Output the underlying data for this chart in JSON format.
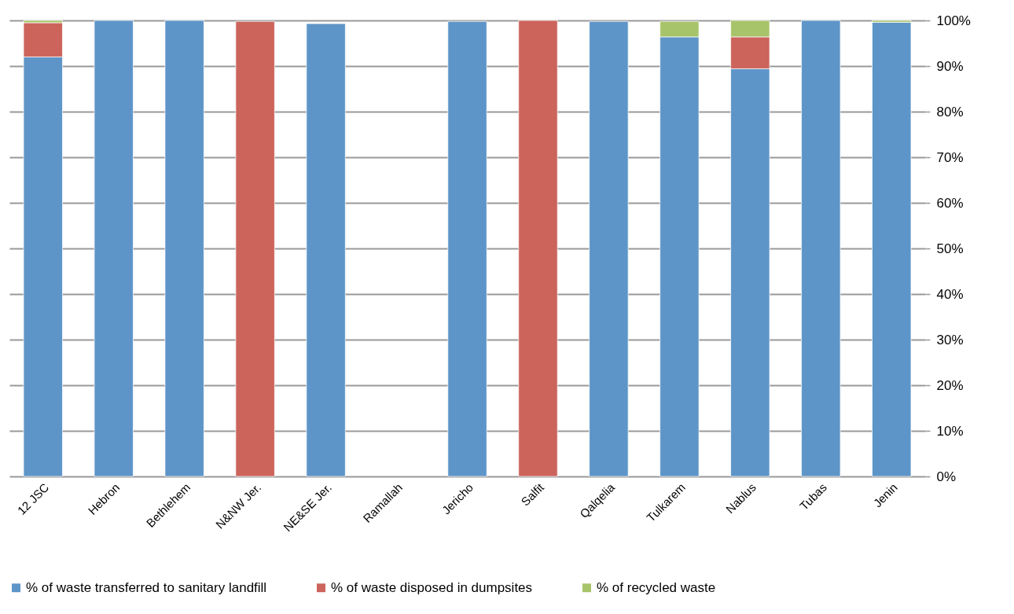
{
  "chart_data": {
    "type": "bar",
    "stacked": true,
    "categories": [
      "12 JSC",
      "Hebron",
      "Bethlehem",
      "N&NW Jer.",
      "NE&SE Jer.",
      "Ramallah",
      "Jericho",
      "Salfit",
      "Qalqelia",
      "Tulkarem",
      "Nablus",
      "Tubas",
      "Jenin"
    ],
    "series": [
      {
        "name": "% of waste transferred to sanitary landfill",
        "color": "#5e95c8",
        "values": [
          92,
          100,
          100,
          null,
          99.3,
          null,
          99.8,
          null,
          99.8,
          96.4,
          89.4,
          100,
          99.6
        ]
      },
      {
        "name": "% of waste disposed in dumpsites",
        "color": "#cc645c",
        "values": [
          7.5,
          null,
          null,
          99.8,
          null,
          null,
          null,
          100,
          null,
          null,
          7,
          null,
          null
        ]
      },
      {
        "name": "% of recycled waste",
        "color": "#a8c46a",
        "values": [
          0.5,
          null,
          null,
          null,
          null,
          null,
          null,
          null,
          null,
          3.4,
          3.6,
          null,
          0.4
        ]
      }
    ],
    "ylim": [
      0,
      100
    ],
    "yticks": [
      {
        "value": 0,
        "label": "0%"
      },
      {
        "value": 10,
        "label": "10%"
      },
      {
        "value": 20,
        "label": "20%"
      },
      {
        "value": 30,
        "label": "30%"
      },
      {
        "value": 40,
        "label": "40%"
      },
      {
        "value": 50,
        "label": "50%"
      },
      {
        "value": 60,
        "label": "60%"
      },
      {
        "value": 70,
        "label": "70%"
      },
      {
        "value": 80,
        "label": "80%"
      },
      {
        "value": 90,
        "label": "90%"
      },
      {
        "value": 100,
        "label": "100%"
      }
    ],
    "grid": "y",
    "legend": "bottom"
  }
}
